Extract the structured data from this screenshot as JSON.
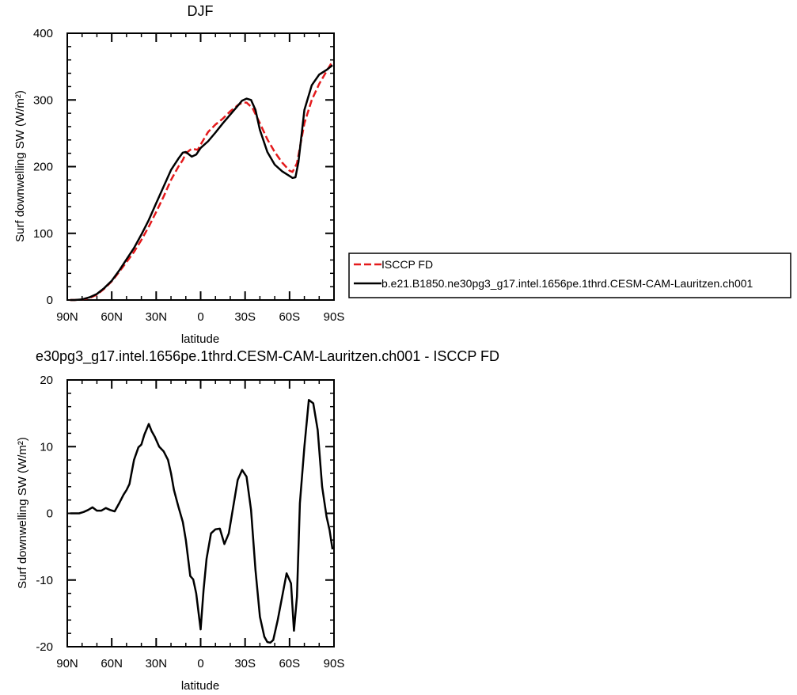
{
  "chart_data": [
    {
      "type": "line",
      "title": "DJF",
      "xlabel": "latitude",
      "ylabel": "Surf downwelling SW (W/m²)",
      "xlim": [
        90,
        -90
      ],
      "ylim": [
        0,
        400
      ],
      "xticks": [
        90,
        60,
        30,
        0,
        -30,
        -60,
        -90
      ],
      "xtick_labels": [
        "90N",
        "60N",
        "30N",
        "0",
        "30S",
        "60S",
        "90S"
      ],
      "yticks": [
        0,
        100,
        200,
        300,
        400
      ],
      "ytick_labels": [
        "0",
        "100",
        "200",
        "300",
        "400"
      ],
      "legend_position": "right-outside",
      "series": [
        {
          "name": "ISCCP FD",
          "color": "#e41a1c",
          "dash": "dashed",
          "x": [
            88,
            85,
            80,
            75,
            70,
            65,
            60,
            55,
            50,
            45,
            40,
            35,
            30,
            25,
            20,
            15,
            12,
            10,
            6,
            2,
            0,
            -5,
            -10,
            -15,
            -20,
            -25,
            -28,
            -31,
            -35,
            -40,
            -45,
            -50,
            -55,
            -60,
            -62,
            -65,
            -70,
            -75,
            -80,
            -85,
            -89
          ],
          "y": [
            0,
            0,
            1,
            3,
            8,
            17,
            28,
            42,
            57,
            72,
            90,
            110,
            132,
            155,
            180,
            200,
            210,
            220,
            227,
            225,
            233,
            252,
            263,
            272,
            283,
            292,
            296,
            296,
            288,
            265,
            241,
            222,
            206,
            194,
            192,
            205,
            265,
            300,
            324,
            343,
            358
          ]
        },
        {
          "name": "b.e21.B1850.ne30pg3_g17.intel.1656pe.1thrd.CESM-CAM-Lauritzen.ch001",
          "color": "#000000",
          "dash": "solid",
          "x": [
            88,
            85,
            80,
            75,
            70,
            65,
            60,
            55,
            50,
            45,
            40,
            35,
            30,
            25,
            20,
            15,
            12,
            10,
            6,
            3,
            0,
            -5,
            -10,
            -15,
            -20,
            -25,
            -28,
            -31,
            -34,
            -37,
            -40,
            -45,
            -50,
            -55,
            -60,
            -62,
            -64,
            -66,
            -70,
            -75,
            -80,
            -85,
            -89
          ],
          "y": [
            0,
            0,
            1,
            4,
            9,
            18,
            29,
            44,
            61,
            78,
            98,
            120,
            145,
            170,
            195,
            212,
            221,
            222,
            215,
            218,
            228,
            238,
            251,
            265,
            278,
            291,
            299,
            302,
            300,
            285,
            255,
            222,
            203,
            193,
            186,
            183,
            184,
            207,
            285,
            322,
            338,
            345,
            352
          ]
        }
      ]
    },
    {
      "type": "line",
      "title": "e30pg3_g17.intel.1656pe.1thrd.CESM-CAM-Lauritzen.ch001 - ISCCP FD",
      "xlabel": "latitude",
      "ylabel": "Surf downwelling SW (W/m²)",
      "xlim": [
        90,
        -90
      ],
      "ylim": [
        -20,
        20
      ],
      "xticks": [
        90,
        60,
        30,
        0,
        -30,
        -60,
        -90
      ],
      "xtick_labels": [
        "90N",
        "60N",
        "30N",
        "0",
        "30S",
        "60S",
        "90S"
      ],
      "yticks": [
        -20,
        -10,
        0,
        10,
        20
      ],
      "ytick_labels": [
        "-20",
        "-10",
        "0",
        "10",
        "20"
      ],
      "series": [
        {
          "color": "#000000",
          "dash": "solid",
          "x": [
            88,
            85,
            82,
            79,
            76,
            73,
            70,
            67,
            64,
            61,
            58,
            55,
            52,
            50,
            48,
            45,
            42,
            40,
            38,
            35,
            33,
            31,
            28,
            25,
            22,
            20,
            18,
            15,
            12,
            10,
            7,
            5,
            3,
            1,
            0,
            -2,
            -4,
            -7,
            -10,
            -13,
            -16,
            -19,
            -22,
            -25,
            -28,
            -31,
            -34,
            -37,
            -40,
            -43,
            -45,
            -47,
            -49,
            -52,
            -55,
            -58,
            -61,
            -63,
            -65,
            -67,
            -70,
            -73,
            -76,
            -79,
            -82,
            -85,
            -87,
            -89
          ],
          "y": [
            0,
            0,
            0,
            0.2,
            0.5,
            0.9,
            0.4,
            0.4,
            0.8,
            0.5,
            0.3,
            1.5,
            2.8,
            3.5,
            4.4,
            8,
            9.9,
            10.3,
            11.8,
            13.4,
            12.3,
            11.5,
            10,
            9.3,
            8,
            6,
            3.5,
            1,
            -1.3,
            -4,
            -9.4,
            -9.9,
            -12,
            -15.6,
            -17.4,
            -11.5,
            -6.8,
            -3,
            -2.4,
            -2.3,
            -4.6,
            -3,
            1,
            5,
            6.5,
            5.5,
            0.5,
            -8.5,
            -15.5,
            -18.5,
            -19.3,
            -19.4,
            -19,
            -16,
            -12.5,
            -9,
            -10.5,
            -17.6,
            -12.5,
            1.5,
            10,
            17,
            16.5,
            12.5,
            4,
            -0.5,
            -2.5,
            -5.4
          ]
        }
      ]
    }
  ]
}
